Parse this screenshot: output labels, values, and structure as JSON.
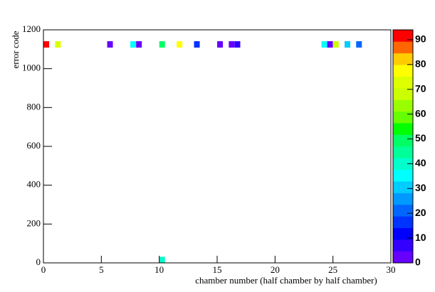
{
  "chart_data": {
    "type": "heatmap",
    "x_label": "chamber number (half chamber by half chamber)",
    "y_label": "error code",
    "xlim": [
      0,
      30
    ],
    "xticks": [
      0,
      5,
      10,
      15,
      20,
      25,
      30
    ],
    "ylim": [
      0,
      1200
    ],
    "yticks": [
      0,
      200,
      400,
      600,
      800,
      1000,
      1200
    ],
    "zlim": [
      0,
      94
    ],
    "zticks": [
      0,
      10,
      20,
      30,
      40,
      50,
      60,
      70,
      80,
      90
    ],
    "palette": [
      "#6600ff",
      "#3300ff",
      "#0000ff",
      "#0033ff",
      "#0066ff",
      "#0099ff",
      "#00ccff",
      "#00ffff",
      "#00ffcc",
      "#00ff99",
      "#00ff66",
      "#00ff00",
      "#66ff00",
      "#99ff00",
      "#ccff00",
      "#ddff00",
      "#ffff00",
      "#ffcc00",
      "#ff6600",
      "#ff0000"
    ],
    "x": [
      0.25,
      1.25,
      5.75,
      7.75,
      8.25,
      10.25,
      11.75,
      13.25,
      15.25,
      16.25,
      16.75,
      24.25,
      24.75,
      25.25,
      26.25,
      27.25,
      10.25
    ],
    "y": [
      1125,
      1125,
      1125,
      1125,
      1125,
      1125,
      1125,
      1125,
      1125,
      1125,
      1125,
      1125,
      1125,
      1125,
      1125,
      1125,
      15
    ],
    "values": [
      92,
      72,
      2,
      35,
      2,
      49,
      76,
      16,
      2,
      2,
      7,
      35,
      2,
      68,
      30,
      20,
      40
    ]
  }
}
